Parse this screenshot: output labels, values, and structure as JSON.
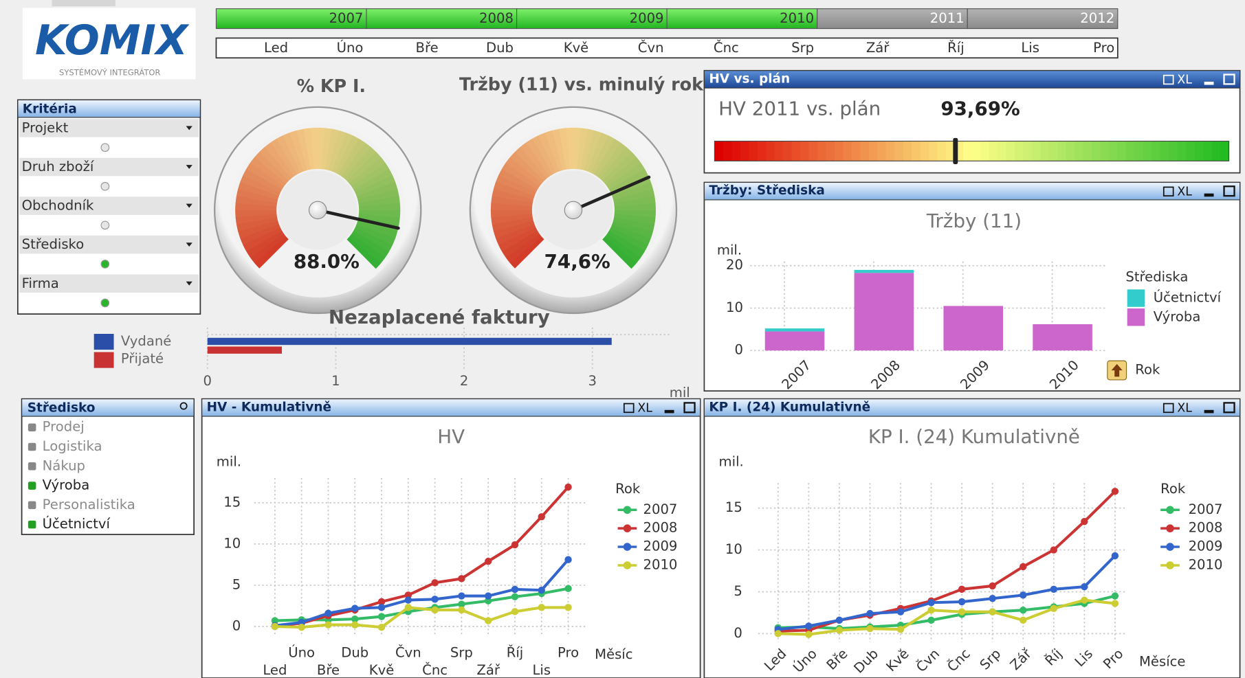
{
  "logo": {
    "name": "KOMIX",
    "tagline": "SYSTÉMOVÝ INTEGRÁTOR"
  },
  "toolbar_label": "XL",
  "timeline": {
    "years": [
      "2007",
      "2008",
      "2009",
      "2010",
      "2011",
      "2012"
    ],
    "selected": [
      true,
      true,
      true,
      true,
      false,
      false
    ],
    "months": [
      "Led",
      "Úno",
      "Bře",
      "Dub",
      "Kvě",
      "Čvn",
      "Čnc",
      "Srp",
      "Zář",
      "Říj",
      "Lis",
      "Pro"
    ]
  },
  "criteria": {
    "title": "Kritéria",
    "items": [
      {
        "label": "Projekt",
        "active": false
      },
      {
        "label": "Druh zboží",
        "active": false
      },
      {
        "label": "Obchodník",
        "active": false
      },
      {
        "label": "Středisko",
        "active": true
      },
      {
        "label": "Firma",
        "active": true
      }
    ]
  },
  "stredisko": {
    "title": "Středisko",
    "items": [
      {
        "label": "Prodej",
        "selected": false
      },
      {
        "label": "Logistika",
        "selected": false
      },
      {
        "label": "Nákup",
        "selected": false
      },
      {
        "label": "Výroba",
        "selected": true
      },
      {
        "label": "Personalistika",
        "selected": false
      },
      {
        "label": "Účetnictví",
        "selected": true
      }
    ]
  },
  "hv_plan": {
    "panel_title": "HV vs. plán",
    "label": "HV 2011 vs. plán",
    "value": 93.69,
    "value_label": "93,69%",
    "lim": [
      0,
      200
    ],
    "band_colors": [
      "#dd0000",
      "#ffff88",
      "#22bb22"
    ]
  },
  "chart_data": [
    {
      "type": "gauge",
      "title": "% KP I.",
      "value": 88.0,
      "value_label": "88.0%",
      "lim": [
        0,
        100
      ],
      "band_colors": [
        "#d23c28",
        "#f3d08a",
        "#35b035"
      ]
    },
    {
      "type": "gauge",
      "title": "Tržby (11) vs. minulý rok",
      "value": 74.6,
      "value_label": "74,6%",
      "lim": [
        0,
        100
      ],
      "band_colors": [
        "#d23c28",
        "#f3d08a",
        "#35b035"
      ]
    },
    {
      "type": "bar",
      "stacked": true,
      "panel_title": "Tržby: Střediska",
      "title": "Tržby (11)",
      "ylabel": "mil.",
      "legend_title": "Střediska",
      "button": "Rok",
      "categories": [
        "2007",
        "2008",
        "2009",
        "2010"
      ],
      "series": [
        {
          "name": "Výroba",
          "color": "#cc66cc",
          "values": [
            4.5,
            18.3,
            10.5,
            6.2
          ]
        },
        {
          "name": "Účetnictví",
          "color": "#33cccc",
          "values": [
            0.7,
            0.7,
            0,
            0
          ]
        }
      ],
      "ylim": [
        0,
        21
      ],
      "yticks": [
        0,
        10,
        20
      ]
    },
    {
      "type": "barh",
      "title": "Nezaplacené faktury",
      "xlabel": "mil",
      "categories": [
        "Vydané",
        "Přijaté"
      ],
      "values": [
        3.15,
        0.58
      ],
      "colors": [
        "#2b4fa8",
        "#c83232"
      ],
      "xlim": [
        0,
        3.6
      ],
      "xticks": [
        0,
        1,
        2,
        3
      ]
    },
    {
      "type": "line",
      "panel_title": "HV - Kumulativně",
      "title": "HV",
      "ylabel": "mil.",
      "xlabel": "Měsíc",
      "legend_title": "Rok",
      "categories": [
        "Led",
        "Úno",
        "Bře",
        "Dub",
        "Kvě",
        "Čvn",
        "Čnc",
        "Srp",
        "Zář",
        "Říj",
        "Lis",
        "Pro"
      ],
      "series": [
        {
          "name": "2007",
          "color": "#33bb66",
          "values": [
            0.7,
            0.8,
            0.8,
            0.9,
            1.2,
            1.8,
            2.3,
            2.7,
            3.1,
            3.6,
            4.0,
            4.6
          ]
        },
        {
          "name": "2008",
          "color": "#cc3333",
          "values": [
            0.0,
            0.4,
            1.3,
            2.0,
            3.0,
            3.8,
            5.3,
            5.8,
            7.9,
            9.9,
            13.3,
            16.9
          ]
        },
        {
          "name": "2009",
          "color": "#3366cc",
          "values": [
            0.1,
            0.5,
            1.6,
            2.2,
            2.3,
            3.2,
            3.3,
            3.7,
            3.7,
            4.5,
            4.4,
            8.1
          ]
        },
        {
          "name": "2010",
          "color": "#cccc33",
          "values": [
            0.0,
            -0.1,
            0.2,
            0.2,
            -0.1,
            2.3,
            2.0,
            2.0,
            0.7,
            1.8,
            2.3,
            2.3
          ]
        }
      ],
      "ylim": [
        -1,
        18
      ],
      "yticks": [
        0,
        5,
        10,
        15
      ]
    },
    {
      "type": "line",
      "panel_title": "KP I. (24) Kumulativně",
      "title": "KP I. (24) Kumulativně",
      "ylabel": "mil.",
      "xlabel": "Měsíce",
      "legend_title": "Rok",
      "categories": [
        "Led",
        "Úno",
        "Bře",
        "Dub",
        "Kvě",
        "Čvn",
        "Čnc",
        "Srp",
        "Zář",
        "Říj",
        "Lis",
        "Pro"
      ],
      "series": [
        {
          "name": "2007",
          "color": "#33bb66",
          "values": [
            0.7,
            0.8,
            0.6,
            0.8,
            1.0,
            1.6,
            2.3,
            2.6,
            2.8,
            3.2,
            3.6,
            4.5
          ]
        },
        {
          "name": "2008",
          "color": "#cc3333",
          "values": [
            0.3,
            0.4,
            1.6,
            2.2,
            3.0,
            3.9,
            5.3,
            5.7,
            8.0,
            10.0,
            13.4,
            17.0
          ]
        },
        {
          "name": "2009",
          "color": "#3366cc",
          "values": [
            0.5,
            0.9,
            1.6,
            2.4,
            2.6,
            3.7,
            3.8,
            4.2,
            4.6,
            5.3,
            5.6,
            9.3
          ]
        },
        {
          "name": "2010",
          "color": "#cccc33",
          "values": [
            0.0,
            -0.1,
            0.4,
            0.6,
            0.5,
            2.8,
            2.6,
            2.6,
            1.6,
            3.0,
            4.0,
            3.6
          ]
        }
      ],
      "ylim": [
        -1,
        18
      ],
      "yticks": [
        0,
        5,
        10,
        15
      ]
    }
  ]
}
